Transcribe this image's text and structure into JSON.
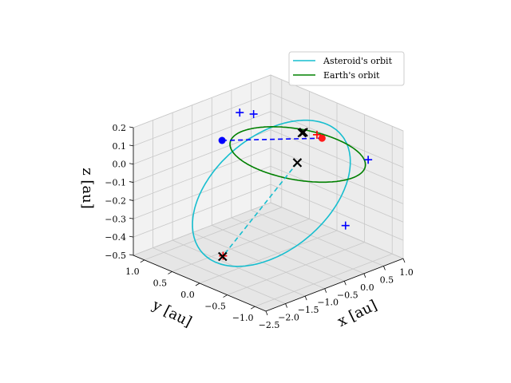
{
  "chart_data": {
    "type": "line",
    "axes": {
      "x": {
        "label": "x [au]",
        "range": [
          -2.5,
          1.0
        ],
        "ticks": [
          -2.5,
          -2.0,
          -1.5,
          -1.0,
          -0.5,
          0.0,
          0.5,
          1.0
        ],
        "tick_labels": [
          "−2.5",
          "−2.0",
          "−1.5",
          "−1.0",
          "−0.5",
          "0.0",
          "0.5",
          "1.0"
        ]
      },
      "y": {
        "label": "y [au]",
        "range": [
          -1.2,
          1.2
        ],
        "ticks": [
          1.0,
          0.5,
          0.0,
          -0.5,
          -1.0
        ],
        "tick_labels": [
          "1.0",
          "0.5",
          "0.0",
          "−0.5",
          "−1.0"
        ]
      },
      "z": {
        "label": "z [au]",
        "range": [
          -0.5,
          0.2
        ],
        "ticks": [
          0.2,
          0.1,
          0.0,
          -0.1,
          -0.2,
          -0.3,
          -0.4,
          -0.5
        ],
        "tick_labels": [
          "0.2",
          "0.1",
          "0.0",
          "−0.1",
          "−0.2",
          "−0.3",
          "−0.4",
          "−0.5"
        ]
      }
    },
    "grid": true,
    "legend": {
      "position": "top-right"
    },
    "series": [
      {
        "name": "Asteroid's orbit",
        "color": "#17becf",
        "orbit": {
          "center": [
            -0.6,
            0.05,
            -0.17
          ],
          "radius_u": 1.2,
          "radius_v": 0.36,
          "u_direction": [
            0.55,
            -0.8,
            0.2
          ],
          "v_direction": [
            0.15,
            0.1,
            0.98
          ]
        }
      },
      {
        "name": "Earth's orbit",
        "color": "#008000",
        "orbit": {
          "center": [
            0.0,
            0.0,
            0.0
          ],
          "radius": 1.0,
          "plane": "xy"
        }
      }
    ],
    "markers": {
      "blue_plus": [
        [
          -0.14,
          0.95,
          0.12
        ],
        [
          -0.35,
          0.55,
          0.18
        ],
        [
          0.6,
          -0.85,
          0.03
        ],
        [
          -0.4,
          -1.15,
          -0.21
        ]
      ],
      "red_plus": [
        [
          0.42,
          -0.05,
          0.08
        ],
        [
          -1.55,
          0.25,
          -0.46
        ]
      ],
      "black_x": [
        [
          0.28,
          0.12,
          0.08
        ],
        [
          0.26,
          0.08,
          0.09
        ],
        [
          -0.15,
          -0.1,
          -0.02
        ],
        [
          -1.52,
          0.28,
          -0.47
        ]
      ],
      "blue_dot": [
        [
          -0.45,
          1.05,
          -0.02
        ]
      ],
      "red_dot": [
        [
          0.55,
          -0.05,
          0.05
        ]
      ]
    },
    "dashed_lines": [
      {
        "color": "#0000ff",
        "from": [
          -0.45,
          1.05,
          -0.02
        ],
        "to": [
          0.55,
          -0.05,
          0.05
        ]
      },
      {
        "color": "#17becf",
        "from": [
          -0.15,
          -0.1,
          -0.02
        ],
        "to": [
          -1.52,
          0.28,
          -0.47
        ]
      }
    ]
  }
}
